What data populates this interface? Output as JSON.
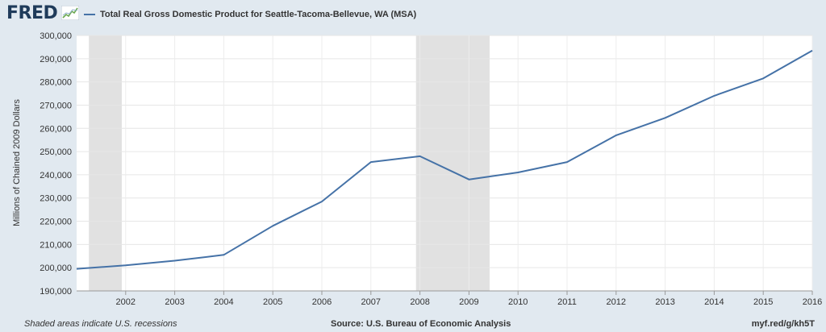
{
  "header": {
    "logo": "FRED",
    "logo_icon": "line-graph-icon"
  },
  "chart_data": {
    "type": "line",
    "title": "",
    "xlabel": "",
    "ylabel": "Millions of Chained 2009 Dollars",
    "series": [
      {
        "name": "Total Real Gross Domestic Product for Seattle-Tacoma-Bellevue, WA (MSA)",
        "color": "#4572a7",
        "x": [
          2001,
          2002,
          2003,
          2004,
          2005,
          2006,
          2007,
          2008,
          2009,
          2010,
          2011,
          2012,
          2013,
          2014,
          2015,
          2016
        ],
        "values": [
          199500,
          201000,
          203000,
          205500,
          218000,
          228500,
          245500,
          248000,
          238000,
          241000,
          245500,
          257000,
          264500,
          274000,
          281500,
          293500
        ]
      }
    ],
    "x_ticks": [
      "2002",
      "2003",
      "2004",
      "2005",
      "2006",
      "2007",
      "2008",
      "2009",
      "2010",
      "2011",
      "2012",
      "2013",
      "2014",
      "2015",
      "2016"
    ],
    "y_ticks": [
      "190,000",
      "200,000",
      "210,000",
      "220,000",
      "230,000",
      "240,000",
      "250,000",
      "260,000",
      "270,000",
      "280,000",
      "290,000",
      "300,000"
    ],
    "xlim": [
      2001,
      2016
    ],
    "ylim": [
      190000,
      300000
    ],
    "recessions": [
      {
        "start": 2001.25,
        "end": 2001.92
      },
      {
        "start": 2007.92,
        "end": 2009.42
      }
    ],
    "recession_color": "#e1e1e1",
    "grid": true,
    "legend_position": "top-left"
  },
  "footer": {
    "note": "Shaded areas indicate U.S. recessions",
    "source": "Source: U.S. Bureau of Economic Analysis",
    "link": "myf.red/g/kh5T"
  }
}
